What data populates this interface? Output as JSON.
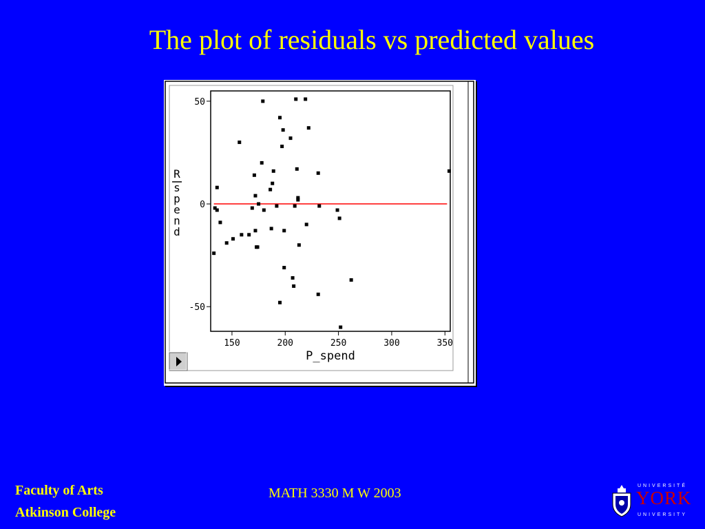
{
  "slide": {
    "title": "The plot of residuals vs predicted values",
    "footer_left_line1": "Faculty of Arts",
    "footer_left_line2": "Atkinson College",
    "footer_center": "MATH 3330 M W 2003",
    "logo": {
      "top_text": "UNIVERSITÉ",
      "main_text": "YORK",
      "bottom_text": "UNIVERSITY",
      "crest_icon": "york-crest-icon"
    }
  },
  "colors": {
    "background": "#0000FF",
    "text": "#FFFF00",
    "reference_line": "#FF0000",
    "points": "#000000"
  },
  "chart_data": {
    "type": "scatter",
    "xlabel": "P_spend",
    "ylabel": "R_spend",
    "xlim": [
      130,
      355
    ],
    "ylim": [
      -62,
      55
    ],
    "xticks": [
      150,
      200,
      250,
      300,
      350
    ],
    "yticks": [
      50,
      0,
      -50
    ],
    "reference_line_y": 0,
    "grid": false,
    "points": [
      [
        133,
        -24
      ],
      [
        134,
        -2
      ],
      [
        136,
        8
      ],
      [
        136,
        -3
      ],
      [
        139,
        -9
      ],
      [
        145,
        -19
      ],
      [
        151,
        -17
      ],
      [
        157,
        30
      ],
      [
        159,
        -15
      ],
      [
        166,
        -15
      ],
      [
        169,
        -2
      ],
      [
        171,
        14
      ],
      [
        172,
        4
      ],
      [
        172,
        -13
      ],
      [
        173,
        -21
      ],
      [
        174,
        -21
      ],
      [
        175,
        0
      ],
      [
        178,
        20
      ],
      [
        179,
        50
      ],
      [
        180,
        -3
      ],
      [
        186,
        7
      ],
      [
        187,
        -12
      ],
      [
        188,
        10
      ],
      [
        189,
        16
      ],
      [
        192,
        -1
      ],
      [
        195,
        -48
      ],
      [
        195,
        42
      ],
      [
        197,
        28
      ],
      [
        198,
        36
      ],
      [
        199,
        -31
      ],
      [
        199,
        -13
      ],
      [
        205,
        32
      ],
      [
        207,
        -36
      ],
      [
        208,
        -40
      ],
      [
        209,
        -1
      ],
      [
        210,
        51
      ],
      [
        211,
        17
      ],
      [
        212,
        2
      ],
      [
        212,
        3
      ],
      [
        213,
        -20
      ],
      [
        219,
        51
      ],
      [
        220,
        -10
      ],
      [
        222,
        37
      ],
      [
        231,
        15
      ],
      [
        231,
        -44
      ],
      [
        232,
        -1
      ],
      [
        249,
        -3
      ],
      [
        251,
        -7
      ],
      [
        252,
        -60
      ],
      [
        262,
        -37
      ],
      [
        354,
        16
      ]
    ]
  }
}
